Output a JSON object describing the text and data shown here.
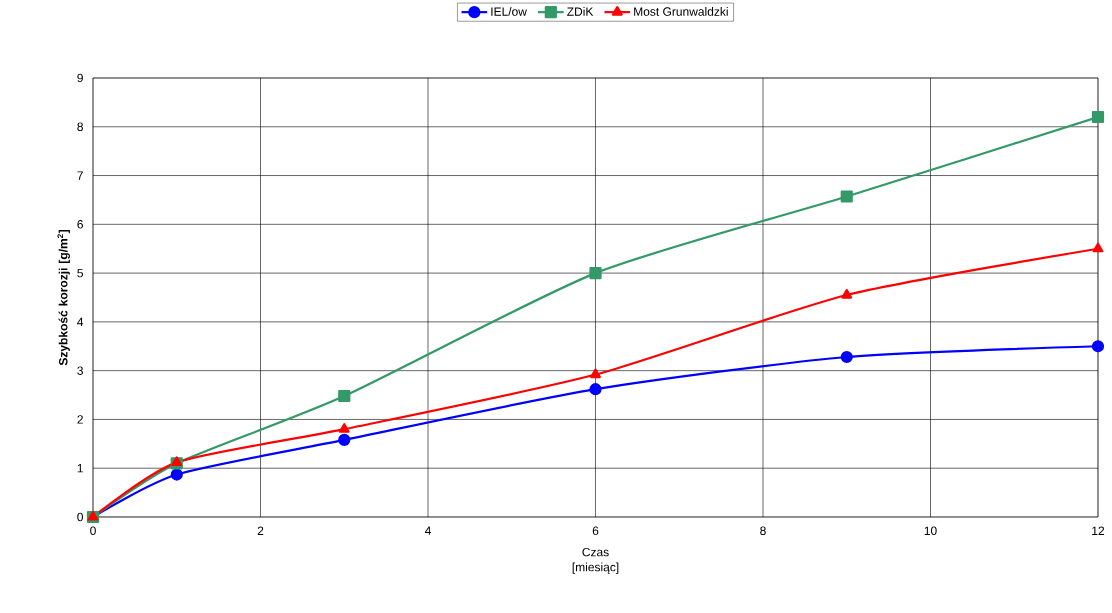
{
  "chart_data": {
    "type": "line",
    "xlabel": "Czas [miesiąc]",
    "ylabel": "**Szybkość korozji [g/m$^{2}$]**",
    "x": [
      0,
      1,
      3,
      6,
      9,
      12
    ],
    "series": [
      {
        "name": "IEL/ow",
        "color": "#0000ff",
        "marker": "circle",
        "values": [
          0,
          0.87,
          1.58,
          2.62,
          3.28,
          3.5
        ]
      },
      {
        "name": "ZDiK",
        "color": "#339966",
        "marker": "square",
        "values": [
          0,
          1.1,
          2.48,
          5.0,
          6.57,
          8.2
        ]
      },
      {
        "name": "Most Grunwaldzki",
        "color": "#ff0000",
        "marker": "triangle",
        "values": [
          0,
          1.12,
          1.8,
          2.92,
          4.55,
          5.5
        ]
      }
    ],
    "xlim": [
      0,
      12
    ],
    "xticks": [
      0,
      2,
      4,
      6,
      8,
      10,
      12
    ],
    "ylim": [
      0,
      9
    ],
    "yticks": [
      0,
      1,
      2,
      3,
      4,
      5,
      6,
      7,
      8,
      9
    ],
    "grid": true,
    "legend": "top",
    "line_style": "solid"
  }
}
